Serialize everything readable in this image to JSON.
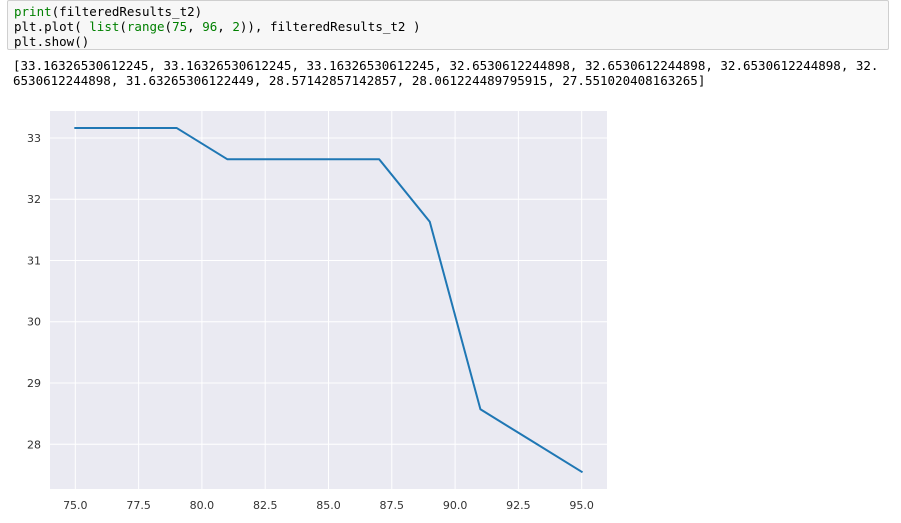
{
  "code": {
    "lines": [
      [
        {
          "t": "print",
          "c": "builtin"
        },
        {
          "t": "(filteredResults_t2)",
          "c": ""
        }
      ],
      [
        {
          "t": "plt.plot( ",
          "c": ""
        },
        {
          "t": "list",
          "c": "builtin"
        },
        {
          "t": "(",
          "c": ""
        },
        {
          "t": "range",
          "c": "builtin"
        },
        {
          "t": "(",
          "c": ""
        },
        {
          "t": "75",
          "c": "num"
        },
        {
          "t": ", ",
          "c": ""
        },
        {
          "t": "96",
          "c": "num"
        },
        {
          "t": ", ",
          "c": ""
        },
        {
          "t": "2",
          "c": "num"
        },
        {
          "t": ")), filteredResults_t2 )",
          "c": ""
        }
      ],
      [
        {
          "t": "plt.show()",
          "c": ""
        }
      ]
    ]
  },
  "output": {
    "lines": [
      "[33.16326530612245, 33.16326530612245, 33.16326530612245, 32.6530612244898, 32.6530612244898, 32.6530612244898, 32.",
      "6530612244898, 31.63265306122449, 28.57142857142857, 28.061224489795915, 27.551020408163265]"
    ]
  },
  "chart_data": {
    "type": "line",
    "x": [
      75,
      77,
      79,
      81,
      83,
      85,
      87,
      89,
      91,
      93,
      95
    ],
    "series": [
      {
        "values": [
          33.16326530612245,
          33.16326530612245,
          33.16326530612245,
          32.6530612244898,
          32.6530612244898,
          32.6530612244898,
          32.6530612244898,
          31.63265306122449,
          28.57142857142857,
          28.061224489795915,
          27.551020408163264
        ],
        "color": "#1f77b4"
      }
    ],
    "xticks": [
      75.0,
      77.5,
      80.0,
      82.5,
      85.0,
      87.5,
      90.0,
      92.5,
      95.0
    ],
    "xtick_labels": [
      "75.0",
      "77.5",
      "80.0",
      "82.5",
      "85.0",
      "87.5",
      "90.0",
      "92.5",
      "95.0"
    ],
    "yticks": [
      28,
      29,
      30,
      31,
      32,
      33
    ],
    "ytick_labels": [
      "28",
      "29",
      "30",
      "31",
      "32",
      "33"
    ],
    "xlim": [
      74,
      96
    ],
    "ylim": [
      27.27,
      33.44
    ],
    "grid": true,
    "style": "seaborn",
    "background": "#eaeaf2",
    "grid_color": "#ffffff"
  }
}
